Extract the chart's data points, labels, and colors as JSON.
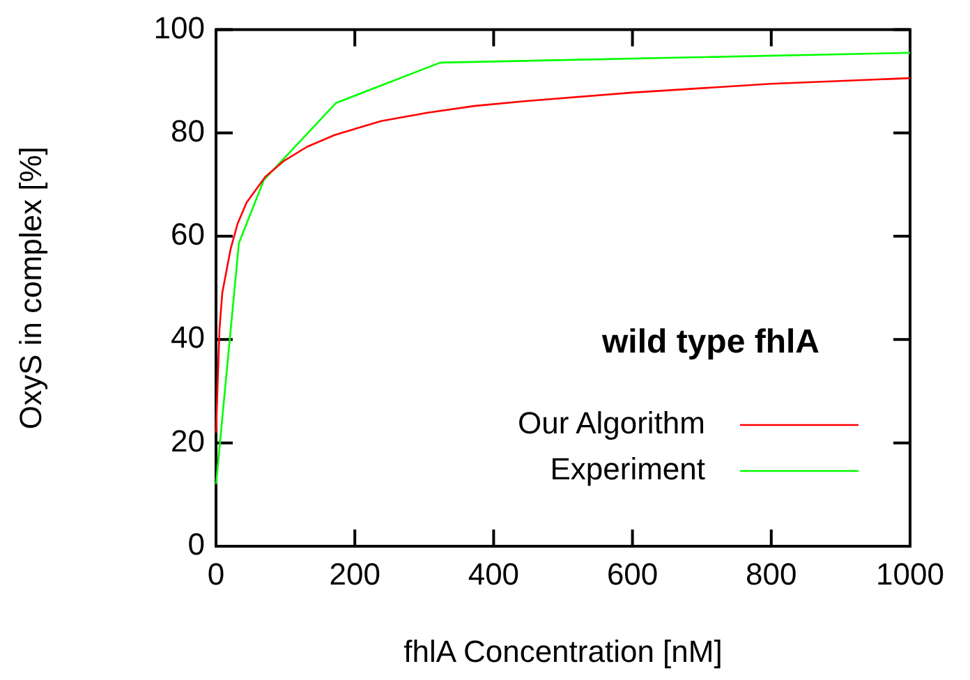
{
  "chart_data": {
    "type": "line",
    "xlabel": "fhlA Concentration [nM]",
    "ylabel": "OxyS in complex [%]",
    "annotations": [
      "wild type fhlA"
    ],
    "xlim": [
      0,
      1000
    ],
    "ylim": [
      0,
      100
    ],
    "xticks": [
      0,
      200,
      400,
      600,
      800,
      1000
    ],
    "yticks": [
      0,
      20,
      40,
      60,
      80,
      100
    ],
    "grid": false,
    "legend": "bottom right",
    "marker": "none",
    "line_style": "solid",
    "series": [
      {
        "name": "Our Algorithm",
        "color": "#ff0000",
        "x": [
          0,
          5,
          9,
          21,
          31,
          44,
          71,
          98,
          131,
          171,
          238,
          305,
          372,
          450,
          600,
          800,
          1000
        ],
        "values": [
          22,
          42,
          49,
          57.5,
          62.4,
          66.5,
          71.5,
          74.6,
          77.3,
          79.6,
          82.3,
          83.9,
          85.2,
          86.2,
          87.8,
          89.5,
          90.6
        ]
      },
      {
        "name": "Experiment",
        "color": "#00ff00",
        "x": [
          0,
          33,
          69,
          173,
          323,
          1000
        ],
        "values": [
          12,
          58.7,
          70.9,
          85.8,
          93.6,
          95.5
        ]
      }
    ]
  }
}
